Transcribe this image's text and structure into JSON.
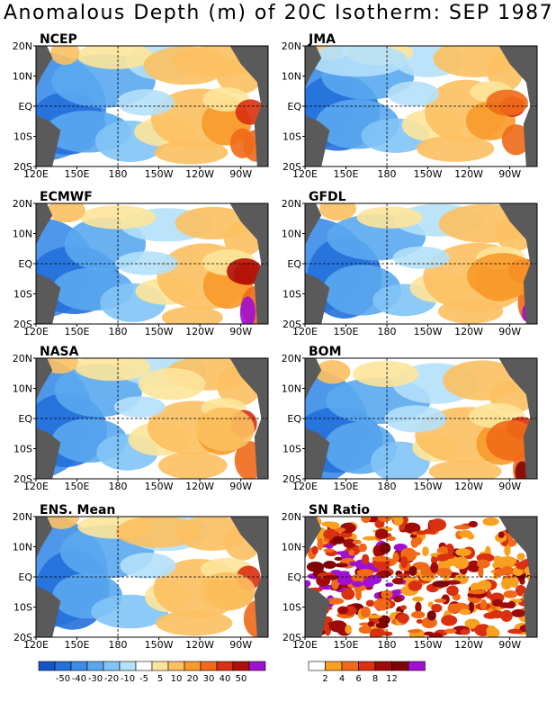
{
  "title": "Anomalous Depth (m) of 20C Isotherm: SEP 1987",
  "x_ticks": [
    "120E",
    "150E",
    "180",
    "150W",
    "120W",
    "90W"
  ],
  "y_ticks": [
    "20N",
    "10N",
    "EQ",
    "10S",
    "20S"
  ],
  "colors": {
    "land": "#5a5a5a",
    "guide_line": "#000000",
    "depth_palette": [
      "#1454c8",
      "#2470dc",
      "#3c8ce8",
      "#5aa8f0",
      "#82c4f6",
      "#b4e0fa",
      "#ffffff",
      "#fde49a",
      "#fcc060",
      "#f89a2a",
      "#f06a18",
      "#d83010",
      "#b01008",
      "#800404",
      "#a010d0"
    ],
    "sn_palette": [
      "#ffffff",
      "#f8a020",
      "#f06a18",
      "#d83010",
      "#a00a08",
      "#800404",
      "#a010d0"
    ]
  },
  "colorbars": {
    "depth_labels": [
      "-50",
      "-40",
      "-30",
      "-20",
      "-10",
      "-5",
      "5",
      "10",
      "20",
      "30",
      "40",
      "50"
    ],
    "sn_labels": [
      "2",
      "4",
      "6",
      "8",
      "12"
    ]
  },
  "chart_data": [
    {
      "type": "heatmap",
      "title": "NCEP",
      "field": "anomalous depth of 20C isotherm (m)",
      "ylim": [
        "20S",
        "20N"
      ],
      "xlim": [
        "120E",
        "70W"
      ],
      "approx_features": [
        {
          "region": "west equatorial Pacific",
          "value": -30
        },
        {
          "region": "east equatorial Pacific 10S",
          "value": 30
        },
        {
          "region": "central north 15N",
          "value": 20
        }
      ]
    },
    {
      "type": "heatmap",
      "title": "JMA",
      "field": "anomalous depth of 20C isotherm (m)",
      "ylim": [
        "20S",
        "20N"
      ],
      "xlim": [
        "120E",
        "70W"
      ],
      "approx_features": [
        {
          "region": "west equatorial Pacific",
          "value": -30
        },
        {
          "region": "east equatorial Pacific",
          "value": 30
        }
      ]
    },
    {
      "type": "heatmap",
      "title": "ECMWF",
      "field": "anomalous depth of 20C isotherm (m)",
      "ylim": [
        "20S",
        "20N"
      ],
      "xlim": [
        "120E",
        "70W"
      ],
      "approx_features": [
        {
          "region": "west equatorial Pacific",
          "value": -30
        },
        {
          "region": "east equatorial Pacific near coast",
          "value": 50
        }
      ]
    },
    {
      "type": "heatmap",
      "title": "GFDL",
      "field": "anomalous depth of 20C isotherm (m)",
      "ylim": [
        "20S",
        "20N"
      ],
      "xlim": [
        "120E",
        "70W"
      ],
      "approx_features": [
        {
          "region": "west equatorial Pacific",
          "value": -30
        },
        {
          "region": "east equatorial Pacific",
          "value": 30
        }
      ]
    },
    {
      "type": "heatmap",
      "title": "NASA",
      "field": "anomalous depth of 20C isotherm (m)",
      "ylim": [
        "20S",
        "20N"
      ],
      "xlim": [
        "120E",
        "70W"
      ],
      "approx_features": [
        {
          "region": "west equatorial Pacific",
          "value": -20
        },
        {
          "region": "east equatorial Pacific",
          "value": 20
        }
      ]
    },
    {
      "type": "heatmap",
      "title": "BOM",
      "field": "anomalous depth of 20C isotherm (m)",
      "ylim": [
        "20S",
        "20N"
      ],
      "xlim": [
        "120E",
        "70W"
      ],
      "approx_features": [
        {
          "region": "west equatorial Pacific",
          "value": -30
        },
        {
          "region": "east equatorial Pacific",
          "value": 30
        }
      ]
    },
    {
      "type": "heatmap",
      "title": "ENS. Mean",
      "field": "anomalous depth of 20C isotherm (m)",
      "ylim": [
        "20S",
        "20N"
      ],
      "xlim": [
        "120E",
        "70W"
      ],
      "approx_features": [
        {
          "region": "west equatorial Pacific",
          "value": -30
        },
        {
          "region": "east equatorial Pacific",
          "value": 30
        }
      ]
    },
    {
      "type": "heatmap",
      "title": "SN Ratio",
      "field": "signal-to-noise ratio",
      "ylim": [
        "20S",
        "20N"
      ],
      "xlim": [
        "120E",
        "70W"
      ],
      "approx_features": [
        {
          "region": "western Pacific warm pool",
          "value": 12
        },
        {
          "region": "central equatorial",
          "value": 8
        }
      ]
    }
  ]
}
